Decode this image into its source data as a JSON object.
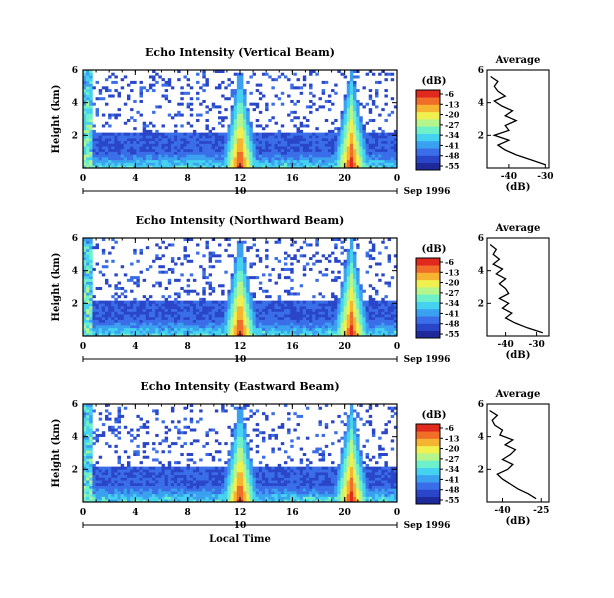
{
  "colormap": [
    "#1e2a9c",
    "#2a46c8",
    "#3a6ee8",
    "#3aa0f0",
    "#44d2f0",
    "#6ef0c8",
    "#b4f58c",
    "#f0f050",
    "#f5b432",
    "#f06e28",
    "#e02a1e"
  ],
  "chart_data": [
    {
      "type": "heatmap",
      "title": "Echo Intensity (Vertical Beam)",
      "ylabel": "Height (km)",
      "xlim": [
        0,
        24
      ],
      "ylim": [
        0,
        6
      ],
      "x_ticks": [
        "0",
        "4",
        "8",
        "12",
        "16",
        "20",
        "0"
      ],
      "y_ticks": [
        "2",
        "4",
        "6"
      ],
      "date_ticks": [
        "10"
      ],
      "date_label": "Sep 1996",
      "colorbar_label": "(dB)",
      "colorbar_ticks": [
        "-6",
        "-13",
        "-20",
        "-27",
        "-34",
        "-41",
        "-48",
        "-55"
      ],
      "echo_bursts_local_time": [
        12,
        20.5
      ],
      "profile": {
        "title": "Average",
        "xlabel": "(dB)",
        "x_ticks": [
          "-40",
          "-30"
        ],
        "xlim": [
          -46,
          -29
        ],
        "y_ticks": [
          "2",
          "4",
          "6"
        ],
        "heights": [
          0.2,
          0.5,
          0.8,
          1.1,
          1.4,
          1.7,
          2.0,
          2.3,
          2.6,
          2.9,
          3.2,
          3.5,
          3.8,
          4.1,
          4.4,
          4.7,
          5.0,
          5.3,
          5.6
        ],
        "values": [
          -30,
          -34,
          -38,
          -41,
          -43,
          -40,
          -44,
          -40,
          -41,
          -38,
          -41,
          -39,
          -42,
          -44,
          -41,
          -43,
          -44,
          -43,
          -45
        ]
      }
    },
    {
      "type": "heatmap",
      "title": "Echo Intensity (Northward Beam)",
      "ylabel": "Height (km)",
      "xlim": [
        0,
        24
      ],
      "ylim": [
        0,
        6
      ],
      "x_ticks": [
        "0",
        "4",
        "8",
        "12",
        "16",
        "20",
        "0"
      ],
      "y_ticks": [
        "2",
        "4",
        "6"
      ],
      "date_ticks": [
        "10"
      ],
      "date_label": "Sep 1996",
      "colorbar_label": "(dB)",
      "colorbar_ticks": [
        "-6",
        "-13",
        "-20",
        "-27",
        "-34",
        "-41",
        "-48",
        "-55"
      ],
      "echo_bursts_local_time": [
        12,
        20.5
      ],
      "profile": {
        "title": "Average",
        "xlabel": "(dB)",
        "x_ticks": [
          "-40",
          "-30"
        ],
        "xlim": [
          -46,
          -26
        ],
        "y_ticks": [
          "2",
          "4",
          "6"
        ],
        "heights": [
          0.2,
          0.5,
          0.8,
          1.1,
          1.4,
          1.7,
          2.0,
          2.3,
          2.6,
          2.9,
          3.2,
          3.5,
          3.8,
          4.1,
          4.4,
          4.7,
          5.0,
          5.3,
          5.6
        ],
        "values": [
          -28,
          -33,
          -37,
          -40,
          -38,
          -41,
          -39,
          -42,
          -39,
          -40,
          -42,
          -40,
          -43,
          -41,
          -44,
          -42,
          -44,
          -43,
          -45
        ]
      }
    },
    {
      "type": "heatmap",
      "title": "Echo Intensity (Eastward Beam)",
      "ylabel": "Height (km)",
      "xlabel": "Local Time",
      "xlim": [
        0,
        24
      ],
      "ylim": [
        0,
        6
      ],
      "x_ticks": [
        "0",
        "4",
        "8",
        "12",
        "16",
        "20",
        "0"
      ],
      "y_ticks": [
        "2",
        "4",
        "6"
      ],
      "date_ticks": [
        "10"
      ],
      "date_label": "Sep 1996",
      "colorbar_label": "(dB)",
      "colorbar_ticks": [
        "-6",
        "-13",
        "-20",
        "-27",
        "-34",
        "-41",
        "-48",
        "-55"
      ],
      "echo_bursts_local_time": [
        12,
        20.5
      ],
      "profile": {
        "title": "Average",
        "xlabel": "(dB)",
        "x_ticks": [
          "-40",
          "-25"
        ],
        "xlim": [
          -46,
          -22
        ],
        "y_ticks": [
          "2",
          "4",
          "6"
        ],
        "heights": [
          0.2,
          0.5,
          0.8,
          1.1,
          1.4,
          1.7,
          2.0,
          2.3,
          2.6,
          2.9,
          3.2,
          3.5,
          3.8,
          4.1,
          4.4,
          4.7,
          5.0,
          5.3,
          5.6
        ],
        "values": [
          -27,
          -30,
          -34,
          -37,
          -40,
          -42,
          -38,
          -36,
          -40,
          -37,
          -35,
          -39,
          -36,
          -41,
          -40,
          -43,
          -44,
          -42,
          -45
        ]
      }
    }
  ]
}
